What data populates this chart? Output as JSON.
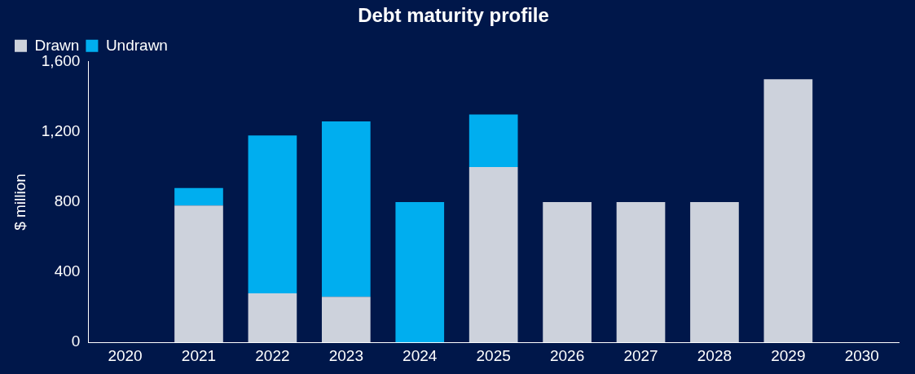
{
  "chart_data": {
    "type": "bar",
    "title": "Debt maturity profile",
    "ylabel": "$ million",
    "categories": [
      "2020",
      "2021",
      "2022",
      "2023",
      "2024",
      "2025",
      "2026",
      "2027",
      "2028",
      "2029",
      "2030"
    ],
    "series": [
      {
        "name": "Drawn",
        "color": "#cdd2dc",
        "values": [
          null,
          780,
          280,
          260,
          null,
          1000,
          800,
          800,
          800,
          1500,
          null
        ]
      },
      {
        "name": "Undrawn",
        "color": "#00aeef",
        "values": [
          null,
          100,
          900,
          1000,
          800,
          300,
          null,
          null,
          null,
          null,
          null
        ]
      }
    ],
    "stacked": true,
    "ylim": [
      0,
      1600
    ],
    "yticks": [
      {
        "value": 0,
        "label": "0"
      },
      {
        "value": 400,
        "label": "400"
      },
      {
        "value": 800,
        "label": "800"
      },
      {
        "value": 1200,
        "label": "1,200"
      },
      {
        "value": 1600,
        "label": "1,600"
      }
    ],
    "grid": false,
    "legend": "top left"
  }
}
